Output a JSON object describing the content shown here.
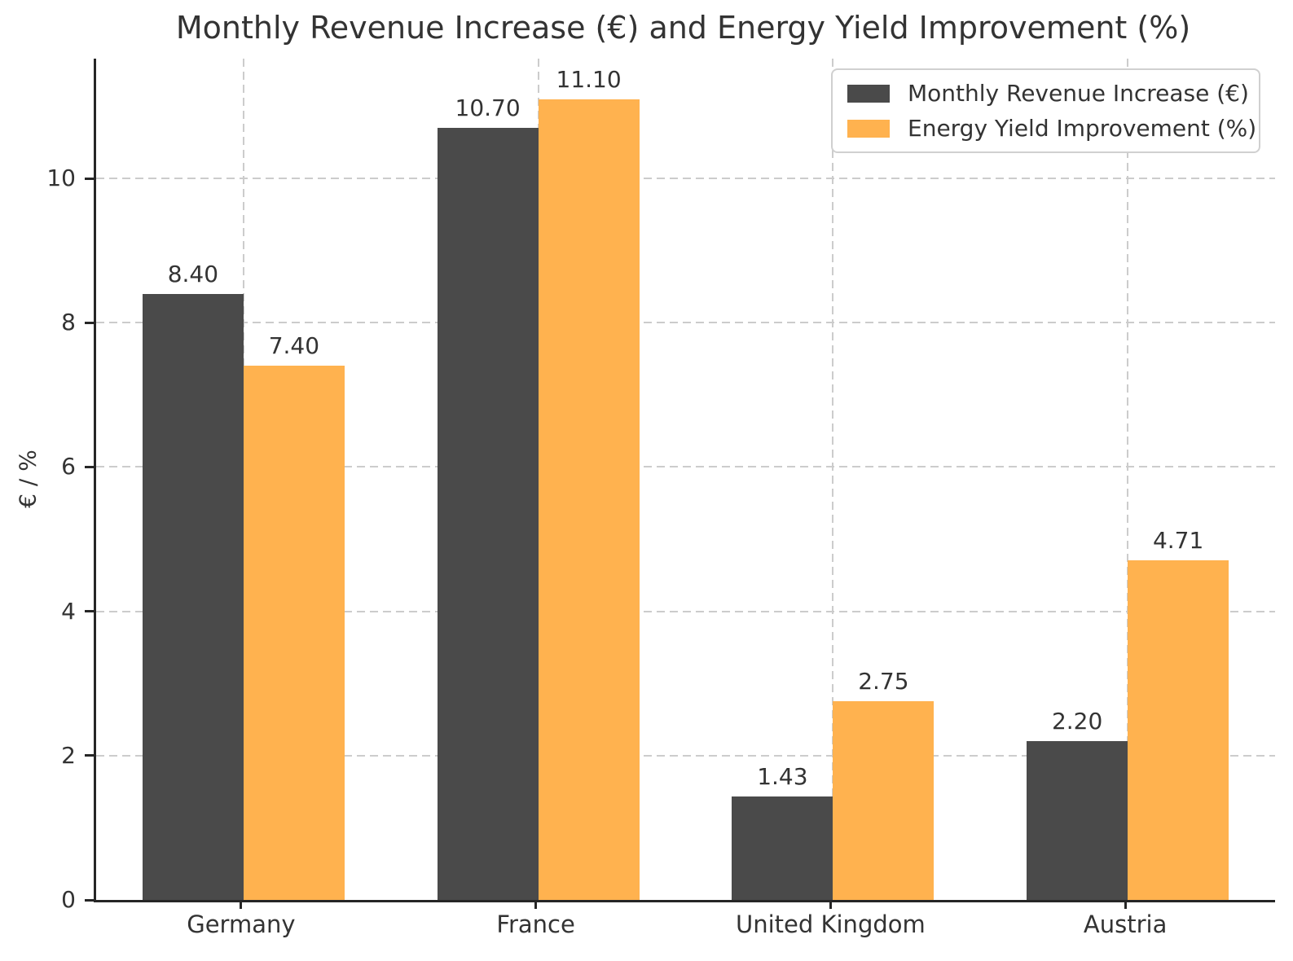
{
  "title": "Monthly Revenue Increase (€) and Energy Yield Improvement (%)",
  "chart_data": {
    "type": "bar",
    "title": "Monthly Revenue Increase (€) and Energy Yield Improvement (%)",
    "xlabel": "",
    "ylabel": "€ / %",
    "categories": [
      "Germany",
      "France",
      "United Kingdom",
      "Austria"
    ],
    "series": [
      {
        "name": "Monthly Revenue Increase (€)",
        "color": "#4a4a4a",
        "values": [
          8.4,
          10.7,
          1.43,
          2.2
        ],
        "labels": [
          "8.40",
          "10.70",
          "1.43",
          "2.20"
        ]
      },
      {
        "name": "Energy Yield Improvement (%)",
        "color": "#ffb24f",
        "values": [
          7.4,
          11.1,
          2.75,
          4.71
        ],
        "labels": [
          "7.40",
          "11.10",
          "2.75",
          "4.71"
        ]
      }
    ],
    "ylim": [
      0,
      11.66
    ],
    "yticks": [
      0,
      2,
      4,
      6,
      8,
      10
    ],
    "grid": true,
    "grid_style": "dashed",
    "legend_position": "top-right"
  },
  "colors": {
    "background": "#ffffff",
    "axis": "#262626",
    "grid": "#cccccc",
    "text": "#333333",
    "legend_border": "#d0d0d0"
  }
}
